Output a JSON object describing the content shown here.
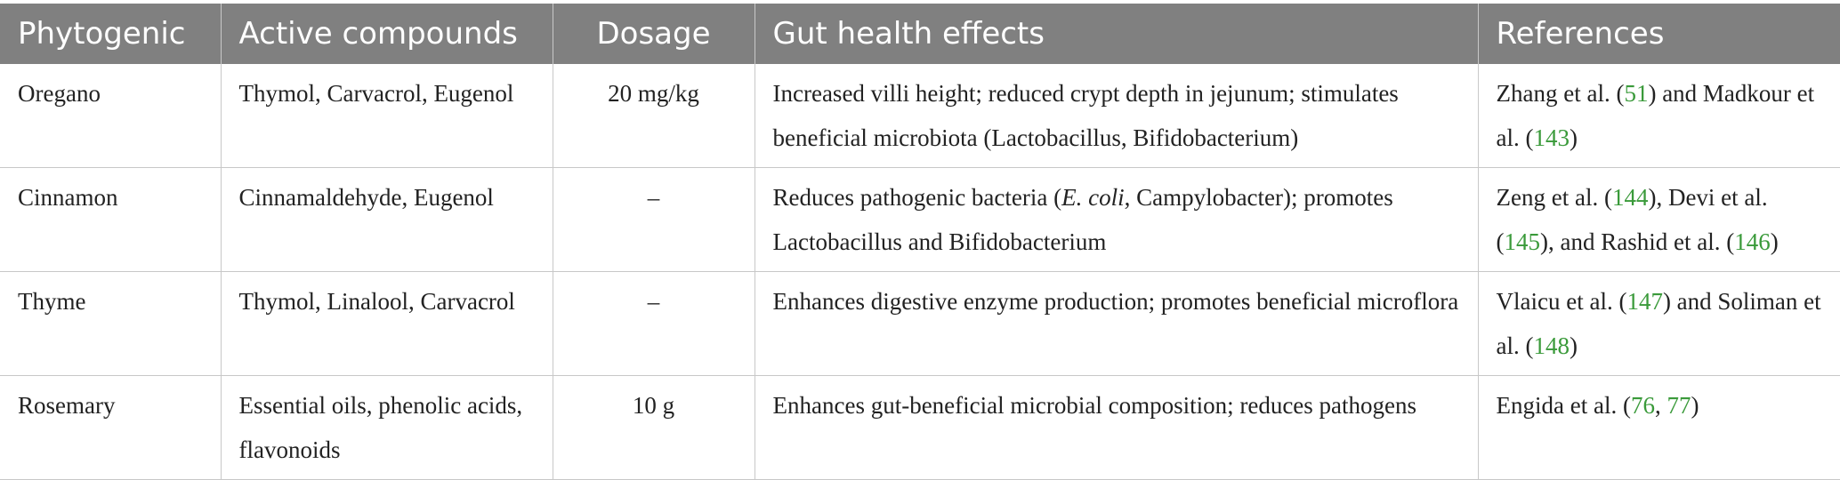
{
  "table": {
    "headers": [
      "Phytogenic",
      "Active compounds",
      "Dosage",
      "Gut health effects",
      "References"
    ],
    "rows": [
      {
        "phytogenic": "Oregano",
        "compounds": "Thymol, Carvacrol, Eugenol",
        "dosage": "20 mg/kg",
        "effects": "Increased villi height; reduced crypt depth in jejunum; stimulates beneficial microbiota (Lactobacillus, Bifidobacterium)",
        "refs": {
          "t1": "Zhang et al. (",
          "r1": "51",
          "t2": ") and Madkour et al. (",
          "r2": "143",
          "t3": ")"
        }
      },
      {
        "phytogenic": "Cinnamon",
        "compounds": "Cinnamaldehyde, Eugenol",
        "dosage": "–",
        "effects": {
          "pre": "Reduces pathogenic bacteria (",
          "italic": "E. coli",
          "post": ", Campylobacter); promotes Lactobacillus and Bifidobacterium"
        },
        "refs": {
          "t1": "Zeng et al. (",
          "r1": "144",
          "t2": "), Devi et al. (",
          "r2": "145",
          "t3": "), and Rashid et al. (",
          "r3": "146",
          "t4": ")"
        }
      },
      {
        "phytogenic": "Thyme",
        "compounds": "Thymol, Linalool, Carvacrol",
        "dosage": "–",
        "effects": "Enhances digestive enzyme production; promotes beneficial microflora",
        "refs": {
          "t1": "Vlaicu et al. (",
          "r1": "147",
          "t2": ") and Soliman et al. (",
          "r2": "148",
          "t3": ")"
        }
      },
      {
        "phytogenic": "Rosemary",
        "compounds": "Essential oils, phenolic acids, flavonoids",
        "dosage": "10 g",
        "effects": "Enhances gut-beneficial microbial composition; reduces pathogens",
        "refs": {
          "t1": "Engida et al. (",
          "r1": "76",
          "t2": ", ",
          "r2": "77",
          "t3": ")"
        }
      }
    ]
  },
  "colors": {
    "header_bg": "#808080",
    "header_text": "#ffffff",
    "reference_link": "#3a9a3a",
    "grid_line": "#c8c8c8"
  }
}
